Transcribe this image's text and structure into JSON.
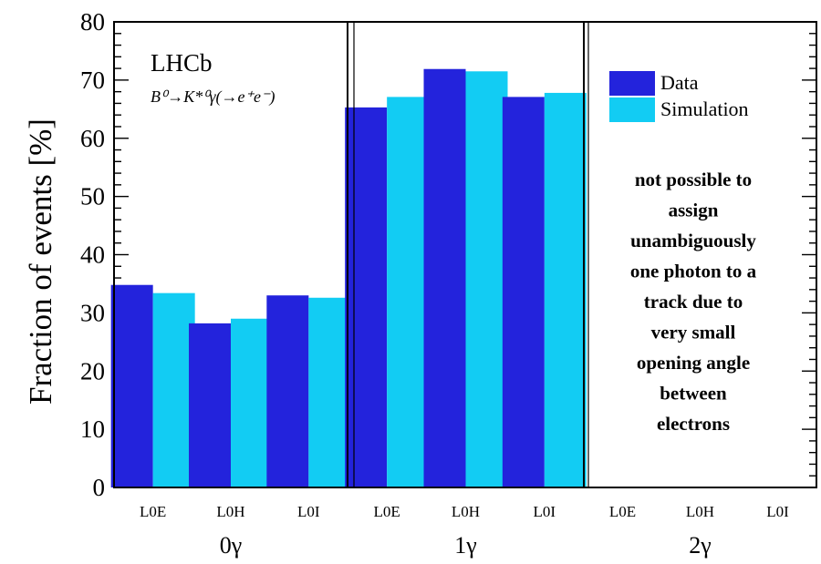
{
  "chart_data": {
    "type": "bar",
    "ylabel": "Fraction of events [%]",
    "ylim": [
      0,
      80
    ],
    "yticks": [
      0,
      10,
      20,
      30,
      40,
      50,
      60,
      70,
      80
    ],
    "groups": [
      {
        "label": "0γ",
        "categories": [
          "L0E",
          "L0H",
          "L0I"
        ],
        "Data": [
          34.8,
          28.2,
          33.0
        ],
        "Simulation": [
          33.4,
          29.0,
          32.6
        ]
      },
      {
        "label": "1γ",
        "categories": [
          "L0E",
          "L0H",
          "L0I"
        ],
        "Data": [
          65.3,
          71.9,
          67.1
        ],
        "Simulation": [
          67.1,
          71.5,
          67.8
        ]
      },
      {
        "label": "2γ",
        "categories": [
          "L0E",
          "L0H",
          "L0I"
        ],
        "Data": [],
        "Simulation": []
      }
    ],
    "series": [
      {
        "name": "Data",
        "color": "#2323dc"
      },
      {
        "name": "Simulation",
        "color": "#12ccf3"
      }
    ],
    "legend_position": "top-right",
    "experiment_label": "LHCb",
    "decay_label": "B⁰→K*⁰γ(→e⁺e⁻)",
    "note": [
      "not possible to",
      "assign",
      "unambiguously",
      "one photon to a",
      "track due to",
      "very small",
      "opening angle",
      "between",
      "electrons"
    ]
  }
}
